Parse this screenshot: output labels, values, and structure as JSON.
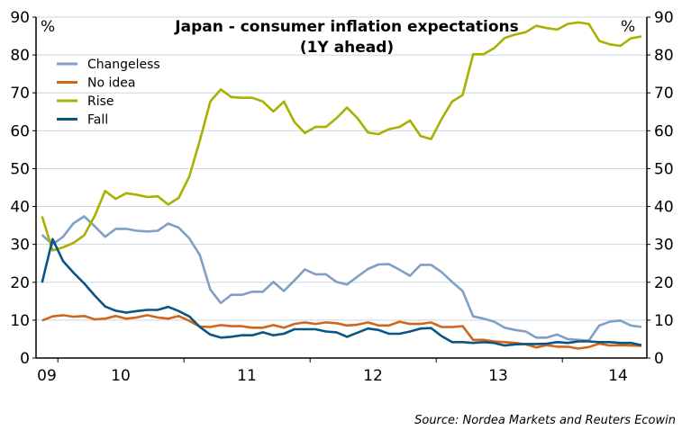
{
  "chart_data": {
    "type": "line",
    "title": "Japan - consumer inflation expectations",
    "subtitle": "(1Y ahead)",
    "y_unit_left": "%",
    "y_unit_right": "%",
    "ylim": [
      0,
      90
    ],
    "yticks": [
      0,
      10,
      20,
      30,
      40,
      50,
      60,
      70,
      80,
      90
    ],
    "grid": true,
    "legend_position": "top-left",
    "x_tick_labels": [
      "09",
      "10",
      "11",
      "12",
      "13",
      "14"
    ],
    "x": [
      "2009-11",
      "2009-12",
      "2010-01",
      "2010-02",
      "2010-03",
      "2010-04",
      "2010-05",
      "2010-06",
      "2010-07",
      "2010-08",
      "2010-09",
      "2010-10",
      "2010-11",
      "2010-12",
      "2011-01",
      "2011-02",
      "2011-03",
      "2011-04",
      "2011-05",
      "2011-06",
      "2011-07",
      "2011-08",
      "2011-09",
      "2011-10",
      "2011-11",
      "2011-12",
      "2012-01",
      "2012-02",
      "2012-03",
      "2012-04",
      "2012-05",
      "2012-06",
      "2012-07",
      "2012-08",
      "2012-09",
      "2012-10",
      "2012-11",
      "2012-12",
      "2013-01",
      "2013-02",
      "2013-03",
      "2013-04",
      "2013-05",
      "2013-06",
      "2013-07",
      "2013-08",
      "2013-09",
      "2013-10",
      "2013-11",
      "2013-12",
      "2014-01",
      "2014-02",
      "2014-03",
      "2014-04",
      "2014-05",
      "2014-06",
      "2014-07",
      "2014-08"
    ],
    "series": [
      {
        "name": "Changeless",
        "color": "#7f9fc6",
        "values": [
          32.5,
          30,
          32,
          35.6,
          37.4,
          34.8,
          32,
          34.1,
          34.1,
          33.6,
          33.4,
          33.6,
          35.5,
          34.4,
          31.6,
          27.2,
          18.1,
          14.5,
          16.7,
          16.7,
          17.5,
          17.5,
          20.1,
          17.7,
          20.5,
          23.4,
          22.1,
          22.1,
          20.1,
          19.4,
          21.5,
          23.5,
          24.7,
          24.8,
          23.3,
          21.7,
          24.6,
          24.6,
          22.7,
          20.1,
          17.7,
          11,
          10.4,
          9.6,
          8,
          7.4,
          7,
          5.4,
          5.4,
          6.2,
          5,
          4.8,
          4.6,
          8.6,
          9.6,
          9.9,
          8.6,
          8.2
        ]
      },
      {
        "name": "No idea",
        "color": "#d0661a",
        "values": [
          9.9,
          11,
          11.3,
          10.9,
          11.1,
          10.2,
          10.4,
          11.1,
          10.4,
          10.7,
          11.3,
          10.7,
          10.4,
          11.1,
          9.8,
          8.3,
          8.2,
          8.7,
          8.4,
          8.4,
          8,
          8,
          8.7,
          8,
          9,
          9.4,
          9,
          9.4,
          9.2,
          8.6,
          8.8,
          9.4,
          8.6,
          8.6,
          9.6,
          9,
          9,
          9.4,
          8.2,
          8.2,
          8.4,
          4.8,
          4.8,
          4.4,
          4.2,
          4,
          3.6,
          2.8,
          3.4,
          3,
          3,
          2.5,
          2.9,
          3.8,
          3.3,
          3.4,
          3.3,
          3.2
        ]
      },
      {
        "name": "Rise",
        "color": "#a8b000",
        "values": [
          37.4,
          28.4,
          29.2,
          30.4,
          32.4,
          37.5,
          44.1,
          42,
          43.5,
          43.1,
          42.5,
          42.7,
          40.5,
          42.3,
          47.9,
          57.4,
          67.7,
          70.9,
          68.9,
          68.7,
          68.7,
          67.7,
          65.1,
          67.7,
          62.3,
          59.4,
          61,
          61,
          63.3,
          66.1,
          63.3,
          59.5,
          59.1,
          60.4,
          61,
          62.7,
          58.6,
          57.8,
          63.1,
          67.7,
          69.4,
          80.2,
          80.2,
          81.8,
          84.5,
          85.4,
          86,
          87.7,
          87.1,
          86.7,
          88.2,
          88.6,
          88.2,
          83.7,
          82.8,
          82.4,
          84.4,
          84.9
        ]
      },
      {
        "name": "Fall",
        "color": "#0b5584",
        "values": [
          19.9,
          31.4,
          25.6,
          22.5,
          19.7,
          16.5,
          13.6,
          12.5,
          12,
          12.4,
          12.7,
          12.7,
          13.5,
          12.4,
          11,
          8.2,
          6.2,
          5.4,
          5.6,
          6,
          6,
          6.8,
          6,
          6.4,
          7.6,
          7.6,
          7.6,
          7,
          6.8,
          5.6,
          6.7,
          7.8,
          7.4,
          6.4,
          6.4,
          7,
          7.8,
          7.9,
          5.8,
          4.2,
          4.2,
          4,
          4.2,
          4,
          3.3,
          3.6,
          3.7,
          3.7,
          3.8,
          4.2,
          4,
          4.4,
          4.4,
          4.2,
          4.2,
          4,
          4,
          3.4
        ]
      }
    ],
    "source": "Source: Nordea Markets and Reuters Ecowin"
  }
}
